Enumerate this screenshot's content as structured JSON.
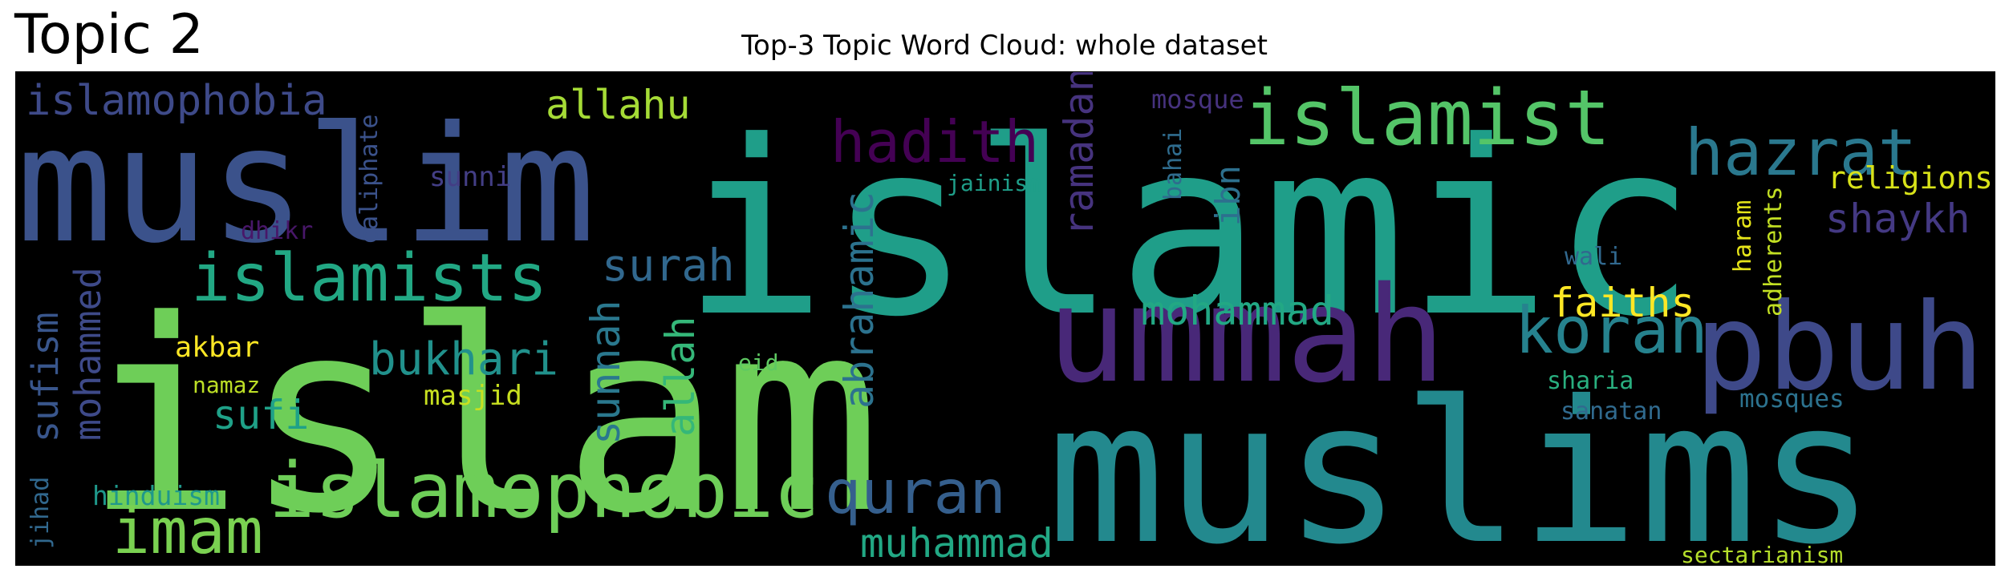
{
  "panel_label": "Topic 2",
  "chart_data": {
    "type": "wordcloud",
    "title": "Top-3 Topic Word Cloud: whole dataset",
    "words": [
      {
        "text": "islamic",
        "color": "#1f9e89"
      },
      {
        "text": "islam",
        "color": "#6ece58"
      },
      {
        "text": "muslims",
        "color": "#23898e"
      },
      {
        "text": "muslim",
        "color": "#3b528b"
      },
      {
        "text": "ummah",
        "color": "#482878"
      },
      {
        "text": "pbuh",
        "color": "#3e4989"
      },
      {
        "text": "islamist",
        "color": "#54c568"
      },
      {
        "text": "islamophobic",
        "color": "#6ece58"
      },
      {
        "text": "islamists",
        "color": "#22a884"
      },
      {
        "text": "hazrat",
        "color": "#2a788e"
      },
      {
        "text": "koran",
        "color": "#26828e"
      },
      {
        "text": "imam",
        "color": "#7ad151"
      },
      {
        "text": "quran",
        "color": "#355f8d"
      },
      {
        "text": "hadith",
        "color": "#440154"
      },
      {
        "text": "islamophobia",
        "color": "#3e4a89"
      },
      {
        "text": "allahu",
        "color": "#a5db36"
      },
      {
        "text": "bukhari",
        "color": "#21918c"
      },
      {
        "text": "mohammad",
        "color": "#22a884"
      },
      {
        "text": "muhammad",
        "color": "#22a884"
      },
      {
        "text": "surah",
        "color": "#31688e"
      },
      {
        "text": "shaykh",
        "color": "#443983"
      },
      {
        "text": "faiths",
        "color": "#fde725"
      },
      {
        "text": "sufi",
        "color": "#1fa188"
      },
      {
        "text": "abrahamic",
        "color": "#2c728e"
      },
      {
        "text": "sunnah",
        "color": "#2a788e"
      },
      {
        "text": "allah",
        "color": "#35b779"
      },
      {
        "text": "ramadan",
        "color": "#46337e"
      },
      {
        "text": "sufism",
        "color": "#39568c"
      },
      {
        "text": "mohammed",
        "color": "#3e4a89"
      },
      {
        "text": "ibn",
        "color": "#2d708e"
      },
      {
        "text": "religions",
        "color": "#d8e219"
      },
      {
        "text": "adherents",
        "color": "#c2df23"
      },
      {
        "text": "haram",
        "color": "#e5e419"
      },
      {
        "text": "caliphate",
        "color": "#3b528b"
      },
      {
        "text": "masjid",
        "color": "#c8e020"
      },
      {
        "text": "akbar",
        "color": "#fde725"
      },
      {
        "text": "hinduism",
        "color": "#1f988b"
      },
      {
        "text": "mosques",
        "color": "#2c728e"
      },
      {
        "text": "sharia",
        "color": "#29af7f"
      },
      {
        "text": "sanatan",
        "color": "#306a8e"
      },
      {
        "text": "wali",
        "color": "#31688e"
      },
      {
        "text": "mosque",
        "color": "#46327e"
      },
      {
        "text": "sunni",
        "color": "#433e85"
      },
      {
        "text": "bahai",
        "color": "#2f6c8e"
      },
      {
        "text": "jainism",
        "color": "#1f9e89"
      },
      {
        "text": "dhikr",
        "color": "#481769"
      },
      {
        "text": "jihad",
        "color": "#31688e"
      },
      {
        "text": "namaz",
        "color": "#bddf26"
      },
      {
        "text": "eid",
        "color": "#5ec962"
      },
      {
        "text": "sectarianism",
        "color": "#b5de2b"
      }
    ]
  }
}
